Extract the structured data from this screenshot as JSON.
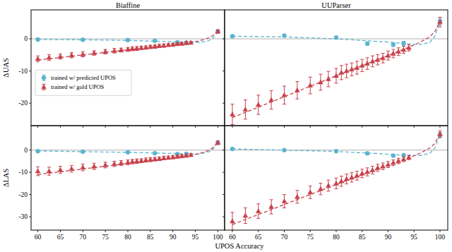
{
  "chart_data": [
    {
      "type": "scatter",
      "title": "Biaffine",
      "y_label": "ΔUAS",
      "xlim": [
        58.5,
        101.5
      ],
      "ylim": [
        -27,
        9
      ],
      "xticks": [
        60,
        65,
        70,
        75,
        80,
        85,
        90,
        95,
        100
      ],
      "yticks": [
        -20,
        -10,
        0
      ],
      "hline": 0,
      "grid": false,
      "legend": "center left",
      "tick_labels": "y",
      "series": [
        {
          "name": "trained w/ predicted UPOS",
          "color": "#5ab4d0",
          "marker": "circle",
          "x": [
            60,
            70,
            80,
            86,
            91,
            93,
            100
          ],
          "values": [
            -0.2,
            -0.3,
            -0.4,
            -0.6,
            -1.1,
            -1.2,
            2.3
          ],
          "errors": [
            0.3,
            0.3,
            0.3,
            0.3,
            0.4,
            0.4,
            0.5
          ]
        },
        {
          "name": "trained w/ gold UPOS",
          "color": "#c8414b",
          "marker": "triangle",
          "x": [
            60,
            62.5,
            65,
            67.5,
            70,
            72.5,
            75,
            77,
            78.5,
            80,
            81,
            82,
            83,
            84,
            85,
            86,
            87,
            88,
            89,
            90,
            91,
            92,
            93,
            94,
            100
          ],
          "values": [
            -6.2,
            -5.8,
            -5.5,
            -5.1,
            -4.8,
            -4.4,
            -4.0,
            -3.7,
            -3.5,
            -3.3,
            -3.1,
            -3.0,
            -2.8,
            -2.7,
            -2.5,
            -2.4,
            -2.2,
            -2.1,
            -1.9,
            -1.8,
            -1.6,
            -1.5,
            -1.3,
            -1.2,
            2.3
          ],
          "errors": [
            0.9,
            0.9,
            0.8,
            0.8,
            0.8,
            0.7,
            0.7,
            0.7,
            0.6,
            0.6,
            0.6,
            0.6,
            0.5,
            0.5,
            0.5,
            0.5,
            0.5,
            0.5,
            0.4,
            0.4,
            0.4,
            0.4,
            0.4,
            0.4,
            0.5
          ]
        },
        {
          "type": "line",
          "line_style": "dashed",
          "color": "#5ab4d0",
          "x": [
            60,
            70,
            80,
            90,
            94,
            96,
            98,
            99,
            100
          ],
          "values": [
            -0.2,
            -0.3,
            -0.5,
            -0.9,
            -1.1,
            -1.1,
            -0.6,
            0.3,
            2.3
          ]
        },
        {
          "type": "line",
          "line_style": "dashed",
          "color": "#c8414b",
          "x": [
            60,
            70,
            80,
            90,
            94,
            96,
            98,
            99,
            100
          ],
          "values": [
            -6.6,
            -5.0,
            -3.4,
            -1.8,
            -1.1,
            -0.6,
            0.3,
            1.1,
            2.4
          ]
        }
      ]
    },
    {
      "type": "scatter",
      "title": "UUParser",
      "xlim": [
        58.5,
        101.5
      ],
      "ylim": [
        -27,
        9
      ],
      "xticks": [
        60,
        65,
        70,
        75,
        80,
        85,
        90,
        95,
        100
      ],
      "yticks": [
        -20,
        -10,
        0
      ],
      "hline": 0,
      "grid": false,
      "tick_labels": false,
      "series": [
        {
          "color": "#5ab4d0",
          "marker": "circle",
          "x": [
            60,
            70,
            80,
            86,
            91,
            93,
            100
          ],
          "values": [
            0.8,
            1.0,
            0.4,
            -1.5,
            -1.8,
            -1.4,
            5.5
          ],
          "errors": [
            0.4,
            0.4,
            0.4,
            0.5,
            0.6,
            0.6,
            1.2
          ]
        },
        {
          "color": "#c8414b",
          "marker": "triangle",
          "x": [
            60,
            62.5,
            65,
            67.5,
            70,
            72.5,
            75,
            77,
            78.5,
            80,
            81,
            82,
            83,
            84,
            85,
            86,
            87,
            88,
            89,
            90,
            91,
            92,
            93,
            94,
            100
          ],
          "values": [
            -23.5,
            -22,
            -20.5,
            -19,
            -17.5,
            -16,
            -14.5,
            -13.5,
            -12.5,
            -11.5,
            -10.5,
            -10,
            -9.5,
            -9,
            -8.3,
            -7.7,
            -7,
            -6.5,
            -6,
            -5.2,
            -4.6,
            -4,
            -3.4,
            -2.8,
            5.2
          ],
          "errors": [
            3.2,
            3,
            3,
            2.9,
            2.8,
            2.7,
            2.6,
            2.5,
            2.4,
            2.3,
            2.2,
            2.1,
            2,
            2,
            1.9,
            1.8,
            1.7,
            1.6,
            1.5,
            1.4,
            1.3,
            1.2,
            1.1,
            1,
            1.5
          ]
        },
        {
          "type": "line",
          "line_style": "dashed",
          "color": "#5ab4d0",
          "x": [
            60,
            70,
            80,
            90,
            94,
            96,
            98,
            99,
            100
          ],
          "values": [
            0.8,
            0.6,
            0,
            -1,
            -1.6,
            -1.8,
            -1.2,
            0.8,
            5.5
          ]
        },
        {
          "type": "line",
          "line_style": "dashed",
          "color": "#c8414b",
          "x": [
            60,
            70,
            80,
            90,
            94,
            96,
            98,
            99,
            100
          ],
          "values": [
            -24.5,
            -18,
            -11.5,
            -5.2,
            -2.6,
            -1.2,
            0.6,
            2.2,
            5.6
          ]
        }
      ]
    },
    {
      "type": "scatter",
      "y_label": "ΔLAS",
      "x_label": "UPOS Accuracy",
      "xlim": [
        58.5,
        101.5
      ],
      "ylim": [
        -36,
        11
      ],
      "xticks": [
        60,
        65,
        70,
        75,
        80,
        85,
        90,
        95,
        100
      ],
      "yticks": [
        -30,
        -20,
        -10,
        0
      ],
      "hline": 0,
      "grid": false,
      "tick_labels": true,
      "series": [
        {
          "color": "#5ab4d0",
          "marker": "circle",
          "x": [
            60,
            70,
            80,
            86,
            91,
            93,
            100
          ],
          "values": [
            -0.5,
            -0.7,
            -1.0,
            -1.4,
            -1.8,
            -1.7,
            3.4
          ],
          "errors": [
            0.3,
            0.3,
            0.3,
            0.4,
            0.4,
            0.4,
            0.8
          ]
        },
        {
          "color": "#c8414b",
          "marker": "triangle",
          "x": [
            60,
            62.5,
            65,
            67.5,
            70,
            72.5,
            75,
            77,
            78.5,
            80,
            81,
            82,
            83,
            84,
            85,
            86,
            87,
            88,
            89,
            90,
            91,
            92,
            93,
            94,
            100
          ],
          "values": [
            -9.5,
            -9.5,
            -8.9,
            -8.4,
            -7.8,
            -7.3,
            -6.7,
            -6.2,
            -5.8,
            -5.5,
            -5.2,
            -5,
            -4.8,
            -4.5,
            -4.3,
            -4.1,
            -3.9,
            -3.6,
            -3.4,
            -3.2,
            -2.9,
            -2.7,
            -2.5,
            -2.2,
            3.3
          ],
          "errors": [
            2,
            1.8,
            1.6,
            1.5,
            1.5,
            1.4,
            1.3,
            1.2,
            1.1,
            1.1,
            1,
            1,
            0.9,
            0.9,
            0.9,
            0.8,
            0.8,
            0.8,
            0.7,
            0.7,
            0.7,
            0.6,
            0.6,
            0.6,
            0.8
          ]
        },
        {
          "type": "line",
          "line_style": "dashed",
          "color": "#5ab4d0",
          "x": [
            60,
            70,
            80,
            90,
            94,
            96,
            98,
            99,
            100
          ],
          "values": [
            -0.4,
            -0.7,
            -1,
            -1.5,
            -1.8,
            -1.7,
            -0.8,
            0.6,
            3.4
          ]
        },
        {
          "type": "line",
          "line_style": "dashed",
          "color": "#c8414b",
          "x": [
            60,
            70,
            80,
            90,
            94,
            96,
            98,
            99,
            100
          ],
          "values": [
            -11,
            -8.5,
            -6,
            -3.5,
            -2.3,
            -1.5,
            -0.1,
            1.2,
            3.5
          ]
        }
      ]
    },
    {
      "type": "scatter",
      "xlim": [
        58.5,
        101.5
      ],
      "ylim": [
        -36,
        11
      ],
      "xticks": [
        60,
        65,
        70,
        75,
        80,
        85,
        90,
        95,
        100
      ],
      "yticks": [
        -30,
        -20,
        -10,
        0
      ],
      "hline": 0,
      "grid": false,
      "tick_labels": "x",
      "series": [
        {
          "color": "#5ab4d0",
          "marker": "circle",
          "x": [
            60,
            70,
            80,
            86,
            91,
            93,
            100
          ],
          "values": [
            0.5,
            0,
            -0.5,
            -1.5,
            -2.5,
            -2.3,
            6.8
          ],
          "errors": [
            0.4,
            0.4,
            0.4,
            0.5,
            0.6,
            0.6,
            1.2
          ]
        },
        {
          "color": "#c8414b",
          "marker": "triangle",
          "x": [
            60,
            62.5,
            65,
            67.5,
            70,
            72.5,
            75,
            77,
            78.5,
            80,
            81,
            82,
            83,
            84,
            85,
            86,
            87,
            88,
            89,
            90,
            91,
            92,
            93,
            94,
            100
          ],
          "values": [
            -32,
            -29.5,
            -27.5,
            -25.5,
            -23,
            -21,
            -19,
            -17.5,
            -16,
            -15,
            -14,
            -13,
            -12.3,
            -11.5,
            -10.5,
            -9.8,
            -9,
            -8,
            -7.3,
            -6.5,
            -5.7,
            -4.9,
            -4.1,
            -3.3,
            7.2
          ],
          "errors": [
            4,
            3.5,
            3.3,
            3.2,
            3,
            2.9,
            2.8,
            2.6,
            2.5,
            2.4,
            2.3,
            2.2,
            2.1,
            2,
            1.9,
            1.8,
            1.7,
            1.6,
            1.5,
            1.4,
            1.3,
            1.2,
            1.1,
            1,
            1.5
          ]
        },
        {
          "type": "line",
          "line_style": "dashed",
          "color": "#5ab4d0",
          "x": [
            60,
            70,
            80,
            90,
            94,
            96,
            98,
            99,
            100
          ],
          "values": [
            0.5,
            0,
            -0.6,
            -1.8,
            -2.4,
            -2.5,
            -1.5,
            0.8,
            7
          ]
        },
        {
          "type": "line",
          "line_style": "dashed",
          "color": "#c8414b",
          "x": [
            60,
            70,
            80,
            90,
            94,
            96,
            98,
            99,
            100
          ],
          "values": [
            -33.5,
            -24.5,
            -15.5,
            -6.8,
            -3.5,
            -1.6,
            0.9,
            2.9,
            7.3
          ]
        }
      ]
    }
  ]
}
